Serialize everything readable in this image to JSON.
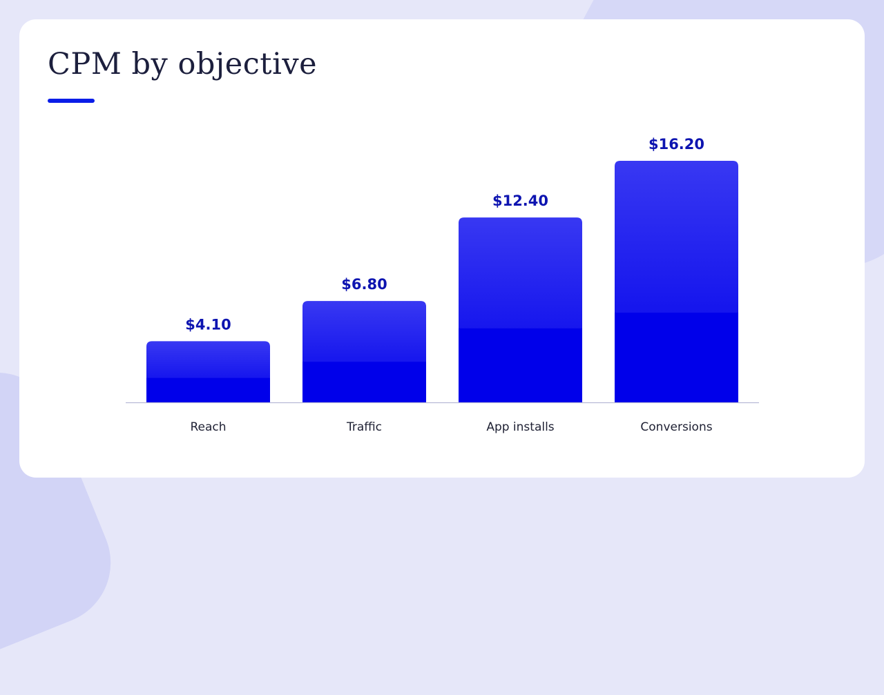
{
  "title": "CPM by objective",
  "colors": {
    "bar_base": "#0000ea",
    "bar_top": "#3838f2",
    "value_label": "#0d14b0",
    "baseline": "#b7b9d6",
    "accent": "#0a1de8"
  },
  "chart_data": {
    "type": "bar",
    "categories": [
      "Reach",
      "Traffic",
      "App installs",
      "Conversions"
    ],
    "values": [
      4.1,
      6.8,
      12.4,
      16.2
    ],
    "value_labels": [
      "$4.10",
      "$6.80",
      "$12.40",
      "$16.20"
    ],
    "title": "CPM by objective",
    "xlabel": "",
    "ylabel": "",
    "ylim": [
      0,
      16.2
    ],
    "grid": false,
    "legend": "none"
  }
}
